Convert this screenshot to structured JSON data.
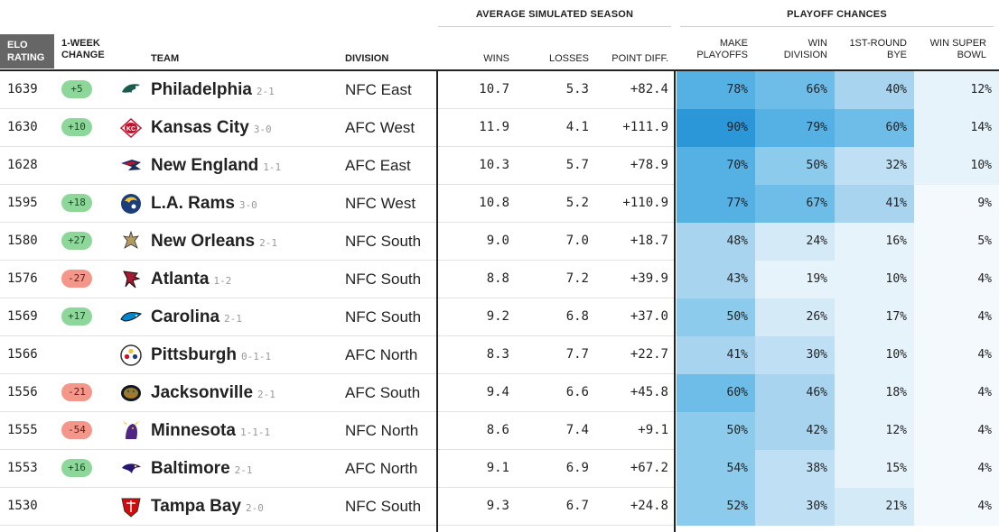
{
  "headers": {
    "group_sim": "AVERAGE SIMULATED SEASON",
    "group_playoff": "PLAYOFF CHANCES",
    "elo": [
      "ELO",
      "RATING"
    ],
    "change": [
      "1-WEEK",
      "CHANGE"
    ],
    "team": "TEAM",
    "division": "DIVISION",
    "wins": "WINS",
    "losses": "LOSSES",
    "point_diff": "POINT DIFF.",
    "make_playoffs": [
      "MAKE",
      "PLAYOFFS"
    ],
    "win_division": [
      "WIN",
      "DIVISION"
    ],
    "bye": [
      "1ST-ROUND",
      "BYE"
    ],
    "super_bowl": [
      "WIN SUPER",
      "BOWL"
    ]
  },
  "chart_data": {
    "type": "table",
    "columns": [
      "ELO RATING",
      "1-WEEK CHANGE",
      "TEAM",
      "DIVISION",
      "WINS",
      "LOSSES",
      "POINT DIFF.",
      "MAKE PLAYOFFS",
      "WIN DIVISION",
      "1ST-ROUND BYE",
      "WIN SUPER BOWL"
    ],
    "rows": [
      {
        "elo": "1639",
        "change": "+5",
        "team": "Philadelphia",
        "record": "2-1",
        "logo": "eagles-logo",
        "division": "NFC East",
        "wins": "10.7",
        "losses": "5.3",
        "diff": "+82.4",
        "playoffs": "78%",
        "win_div": "66%",
        "bye": "40%",
        "sb": "12%"
      },
      {
        "elo": "1630",
        "change": "+10",
        "team": "Kansas City",
        "record": "3-0",
        "logo": "chiefs-logo",
        "division": "AFC West",
        "wins": "11.9",
        "losses": "4.1",
        "diff": "+111.9",
        "playoffs": "90%",
        "win_div": "79%",
        "bye": "60%",
        "sb": "14%"
      },
      {
        "elo": "1628",
        "change": "",
        "team": "New England",
        "record": "1-1",
        "logo": "patriots-logo",
        "division": "AFC East",
        "wins": "10.3",
        "losses": "5.7",
        "diff": "+78.9",
        "playoffs": "70%",
        "win_div": "50%",
        "bye": "32%",
        "sb": "10%"
      },
      {
        "elo": "1595",
        "change": "+18",
        "team": "L.A. Rams",
        "record": "3-0",
        "logo": "rams-logo",
        "division": "NFC West",
        "wins": "10.8",
        "losses": "5.2",
        "diff": "+110.9",
        "playoffs": "77%",
        "win_div": "67%",
        "bye": "41%",
        "sb": "9%"
      },
      {
        "elo": "1580",
        "change": "+27",
        "team": "New Orleans",
        "record": "2-1",
        "logo": "saints-logo",
        "division": "NFC South",
        "wins": "9.0",
        "losses": "7.0",
        "diff": "+18.7",
        "playoffs": "48%",
        "win_div": "24%",
        "bye": "16%",
        "sb": "5%"
      },
      {
        "elo": "1576",
        "change": "-27",
        "team": "Atlanta",
        "record": "1-2",
        "logo": "falcons-logo",
        "division": "NFC South",
        "wins": "8.8",
        "losses": "7.2",
        "diff": "+39.9",
        "playoffs": "43%",
        "win_div": "19%",
        "bye": "10%",
        "sb": "4%"
      },
      {
        "elo": "1569",
        "change": "+17",
        "team": "Carolina",
        "record": "2-1",
        "logo": "panthers-logo",
        "division": "NFC South",
        "wins": "9.2",
        "losses": "6.8",
        "diff": "+37.0",
        "playoffs": "50%",
        "win_div": "26%",
        "bye": "17%",
        "sb": "4%"
      },
      {
        "elo": "1566",
        "change": "",
        "team": "Pittsburgh",
        "record": "0-1-1",
        "logo": "steelers-logo",
        "division": "AFC North",
        "wins": "8.3",
        "losses": "7.7",
        "diff": "+22.7",
        "playoffs": "41%",
        "win_div": "30%",
        "bye": "10%",
        "sb": "4%"
      },
      {
        "elo": "1556",
        "change": "-21",
        "team": "Jacksonville",
        "record": "2-1",
        "logo": "jaguars-logo",
        "division": "AFC South",
        "wins": "9.4",
        "losses": "6.6",
        "diff": "+45.8",
        "playoffs": "60%",
        "win_div": "46%",
        "bye": "18%",
        "sb": "4%"
      },
      {
        "elo": "1555",
        "change": "-54",
        "team": "Minnesota",
        "record": "1-1-1",
        "logo": "vikings-logo",
        "division": "NFC North",
        "wins": "8.6",
        "losses": "7.4",
        "diff": "+9.1",
        "playoffs": "50%",
        "win_div": "42%",
        "bye": "12%",
        "sb": "4%"
      },
      {
        "elo": "1553",
        "change": "+16",
        "team": "Baltimore",
        "record": "2-1",
        "logo": "ravens-logo",
        "division": "AFC North",
        "wins": "9.1",
        "losses": "6.9",
        "diff": "+67.2",
        "playoffs": "54%",
        "win_div": "38%",
        "bye": "15%",
        "sb": "4%"
      },
      {
        "elo": "1530",
        "change": "",
        "team": "Tampa Bay",
        "record": "2-0",
        "logo": "buccaneers-logo",
        "division": "NFC South",
        "wins": "9.3",
        "losses": "6.7",
        "diff": "+24.8",
        "playoffs": "52%",
        "win_div": "30%",
        "bye": "21%",
        "sb": "4%"
      }
    ]
  },
  "colors": {
    "heat_scale": [
      "#f4f9fd",
      "#e7f3fb",
      "#d4eaf7",
      "#bfe0f4",
      "#a8d4ef",
      "#8ccbec",
      "#6ebde8",
      "#55b0e3",
      "#3ba1dc",
      "#2b96d8"
    ],
    "change_positive": "#8ed79b",
    "change_negative": "#f4968a",
    "elo_header_bg": "#666666"
  }
}
